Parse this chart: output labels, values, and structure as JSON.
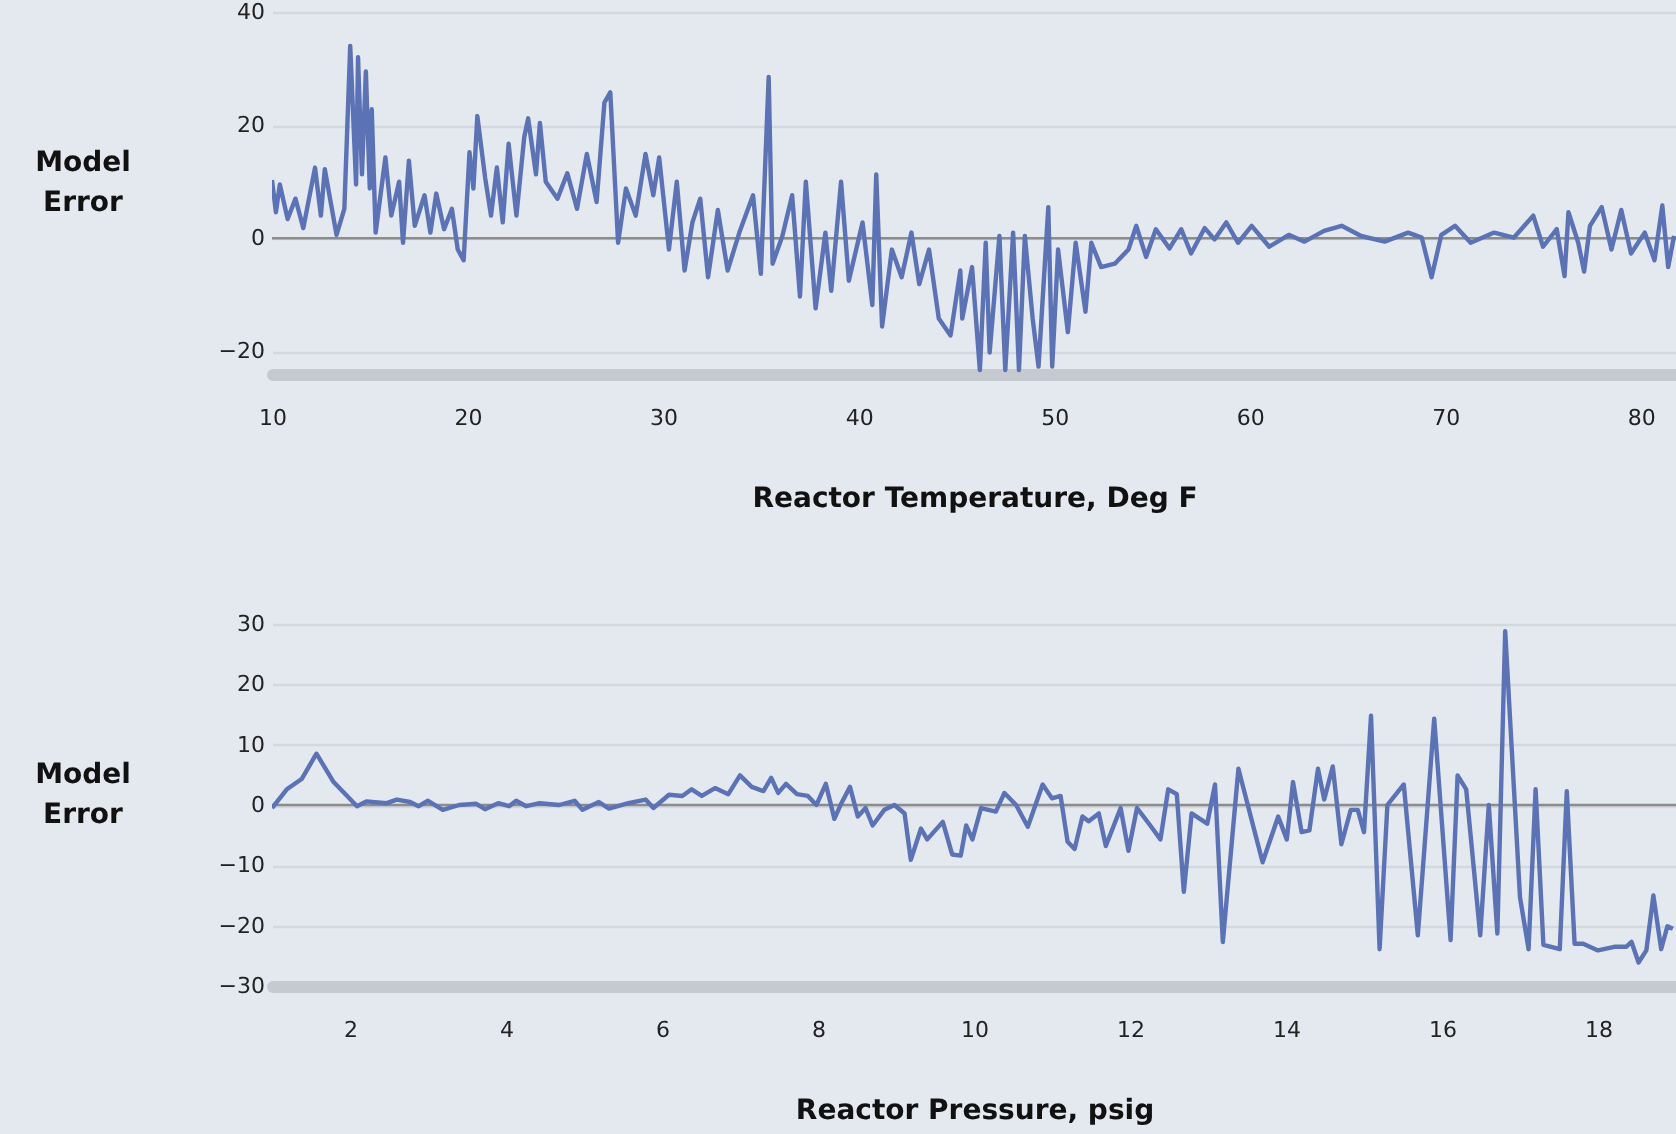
{
  "chart_data": [
    {
      "type": "line",
      "ylabel": "Model Error",
      "xlabel": "Reactor Temperature, Deg F",
      "xlim": [
        10,
        81.8
      ],
      "ylim": [
        -24,
        40
      ],
      "xticks": [
        10,
        20,
        30,
        40,
        50,
        60,
        70,
        80
      ],
      "yticks": [
        -20,
        0,
        20,
        40
      ],
      "grid": "y",
      "ref_lines": [
        {
          "axis": "y",
          "value": 0,
          "color": "#8c8c8c"
        }
      ],
      "x": [
        10.0,
        10.2,
        10.4,
        10.8,
        11.2,
        11.6,
        12.2,
        12.5,
        12.7,
        13.3,
        13.7,
        14.0,
        14.3,
        14.4,
        14.6,
        14.8,
        15.0,
        15.1,
        15.3,
        15.8,
        16.1,
        16.5,
        16.7,
        17.0,
        17.3,
        17.8,
        18.1,
        18.4,
        18.8,
        19.2,
        19.5,
        19.8,
        20.1,
        20.3,
        20.5,
        20.9,
        21.2,
        21.5,
        21.8,
        22.1,
        22.5,
        22.9,
        23.1,
        23.5,
        23.7,
        24.0,
        24.6,
        25.1,
        25.6,
        26.1,
        26.6,
        27.0,
        27.3,
        27.7,
        28.1,
        28.6,
        29.1,
        29.5,
        29.8,
        30.3,
        30.7,
        31.1,
        31.5,
        31.9,
        32.3,
        32.8,
        33.3,
        33.9,
        34.6,
        35.0,
        35.4,
        35.6,
        36.1,
        36.6,
        37.0,
        37.3,
        37.8,
        38.3,
        38.6,
        39.1,
        39.5,
        40.2,
        40.7,
        40.9,
        41.2,
        41.7,
        42.2,
        42.7,
        43.1,
        43.6,
        44.1,
        44.7,
        45.2,
        45.3,
        45.8,
        46.2,
        46.5,
        46.7,
        47.2,
        47.5,
        47.9,
        48.2,
        48.5,
        48.9,
        49.2,
        49.7,
        49.9,
        50.2,
        50.7,
        51.1,
        51.6,
        51.9,
        52.4,
        53.1,
        53.8,
        54.2,
        54.7,
        55.2,
        55.9,
        56.5,
        57.0,
        57.7,
        58.2,
        58.8,
        59.4,
        60.1,
        61.0,
        62.0,
        62.8,
        63.8,
        64.7,
        65.7,
        66.9,
        68.1,
        68.8,
        69.3,
        69.8,
        70.5,
        71.3,
        72.5,
        73.5,
        74.5,
        75.0,
        75.7,
        76.1,
        76.3,
        76.8,
        77.1,
        77.4,
        78.0,
        78.5,
        79.0,
        79.5,
        80.2,
        80.7,
        81.1,
        81.4,
        81.7
      ],
      "series": [
        {
          "color": "#5b72b4",
          "values": [
            10.3,
            4.6,
            9.5,
            3.4,
            7,
            1.8,
            12.5,
            4,
            12.2,
            0.6,
            5.2,
            34,
            9.5,
            32,
            11.3,
            29.5,
            8.8,
            22.8,
            1,
            14.3,
            4,
            10,
            -0.8,
            13.7,
            2.2,
            7.6,
            1,
            7.9,
            1.6,
            5.2,
            -2,
            -3.9,
            15.2,
            8.8,
            21.6,
            10.7,
            4,
            12.5,
            2.8,
            16.7,
            4,
            17.9,
            21.2,
            11.3,
            20.4,
            10,
            7,
            11.5,
            5.2,
            14.9,
            6.4,
            24,
            25.8,
            -0.8,
            8.8,
            4,
            14.9,
            7.6,
            14.3,
            -2,
            10,
            -5.7,
            2.8,
            7,
            -6.9,
            5,
            -5.7,
            1,
            7.6,
            -6.3,
            28.5,
            -4.5,
            0.4,
            7.6,
            -10.3,
            10,
            -12.4,
            1,
            -9.3,
            10,
            -7.5,
            2.8,
            -11.8,
            11.3,
            -15.6,
            -2,
            -6.9,
            1,
            -8.1,
            -2,
            -14.2,
            -17.2,
            -5.7,
            -14.2,
            -5.1,
            -23.3,
            -0.8,
            -20.2,
            0.4,
            -23.3,
            1,
            -23.3,
            0.4,
            -14.2,
            -22.7,
            5.5,
            -22.7,
            -2,
            -16.6,
            -0.8,
            -13,
            -0.8,
            -5.1,
            -4.5,
            -2,
            2.2,
            -3.3,
            1.6,
            -1.8,
            1.6,
            -2.7,
            1.8,
            -0.2,
            2.8,
            -0.8,
            2.2,
            -1.5,
            0.6,
            -0.6,
            1.3,
            2.2,
            0.4,
            -0.6,
            1,
            0.1,
            -6.9,
            0.6,
            2.2,
            -0.8,
            1,
            0.1,
            4,
            -1.5,
            1.6,
            -6.7,
            4.6,
            -0.8,
            -5.9,
            2.2,
            5.5,
            -2,
            5,
            -2.7,
            1,
            -3.9,
            5.8,
            -5.1,
            0.4
          ]
        }
      ]
    },
    {
      "type": "line",
      "ylabel": "Model Error",
      "xlabel": "Reactor Pressure, psig",
      "xlim": [
        1,
        19
      ],
      "ylim": [
        -30,
        30
      ],
      "xticks": [
        2,
        4,
        6,
        8,
        10,
        12,
        14,
        16,
        18
      ],
      "yticks": [
        -30,
        -20,
        -10,
        0,
        10,
        20,
        30
      ],
      "grid": "y",
      "ref_lines": [
        {
          "axis": "y",
          "value": 0,
          "color": "#8c8c8c"
        }
      ],
      "x": [
        1.0,
        1.19,
        1.38,
        1.57,
        1.79,
        2.09,
        2.21,
        2.47,
        2.6,
        2.77,
        2.88,
        3.0,
        3.19,
        3.4,
        3.62,
        3.73,
        3.9,
        4.04,
        4.13,
        4.26,
        4.43,
        4.68,
        4.88,
        4.98,
        5.19,
        5.32,
        5.57,
        5.79,
        5.89,
        6.09,
        6.26,
        6.38,
        6.51,
        6.68,
        6.85,
        7.0,
        7.15,
        7.3,
        7.4,
        7.49,
        7.59,
        7.73,
        7.87,
        7.98,
        8.1,
        8.21,
        8.3,
        8.41,
        8.51,
        8.61,
        8.7,
        8.85,
        8.98,
        9.11,
        9.19,
        9.32,
        9.4,
        9.6,
        9.72,
        9.83,
        9.9,
        9.98,
        10.09,
        10.28,
        10.39,
        10.54,
        10.69,
        10.88,
        11.0,
        11.11,
        11.2,
        11.29,
        11.39,
        11.47,
        11.6,
        11.69,
        11.88,
        11.98,
        12.09,
        12.26,
        12.39,
        12.49,
        12.6,
        12.69,
        12.79,
        12.99,
        13.09,
        13.19,
        13.39,
        13.56,
        13.7,
        13.9,
        14.01,
        14.09,
        14.2,
        14.3,
        14.41,
        14.49,
        14.6,
        14.71,
        14.83,
        14.92,
        15.0,
        15.09,
        15.2,
        15.3,
        15.51,
        15.69,
        15.9,
        16.11,
        16.2,
        16.31,
        16.49,
        16.6,
        16.71,
        16.81,
        17.0,
        17.11,
        17.2,
        17.3,
        17.51,
        17.6,
        17.7,
        17.81,
        18.0,
        18.21,
        18.36,
        18.43,
        18.52,
        18.62,
        18.71,
        18.81,
        18.89,
        18.96
      ],
      "series": [
        {
          "color": "#5b72b4",
          "values": [
            -0.5,
            2.6,
            4.3,
            8.5,
            3.8,
            -0.2,
            0.6,
            0.3,
            0.9,
            0.5,
            -0.2,
            0.7,
            -0.8,
            0,
            0.2,
            -0.7,
            0.3,
            -0.2,
            0.7,
            -0.2,
            0.3,
            0,
            0.7,
            -0.8,
            0.5,
            -0.6,
            0.3,
            0.9,
            -0.5,
            1.7,
            1.5,
            2.6,
            1.5,
            2.8,
            1.8,
            4.9,
            3.0,
            2.3,
            4.5,
            2.0,
            3.5,
            1.8,
            1.5,
            0,
            3.5,
            -2.3,
            0.3,
            3.0,
            -1.9,
            -0.5,
            -3.4,
            -0.8,
            0,
            -1.4,
            -9.1,
            -3.9,
            -5.7,
            -2.8,
            -8.2,
            -8.4,
            -3.4,
            -5.7,
            -0.5,
            -1.1,
            2.0,
            0,
            -3.6,
            3.4,
            1.1,
            1.5,
            -6.1,
            -7.3,
            -1.9,
            -2.7,
            -1.4,
            -6.8,
            -0.5,
            -7.6,
            -0.5,
            -3.4,
            -5.7,
            2.6,
            1.8,
            -14.4,
            -1.4,
            -3.1,
            3.4,
            -22.7,
            6.0,
            -2.5,
            -9.5,
            -1.9,
            -5.7,
            3.8,
            -4.5,
            -4.2,
            6.0,
            0.9,
            6.4,
            -6.5,
            -0.8,
            -0.8,
            -4.5,
            14.8,
            -23.9,
            0,
            3.4,
            -21.6,
            14.3,
            -22.4,
            4.9,
            2.6,
            -21.6,
            0,
            -21.3,
            28.8,
            -15.3,
            -23.9,
            2.6,
            -23.2,
            -23.9,
            2.3,
            -23,
            -23,
            -24.1,
            -23.5,
            -23.5,
            -22.7,
            -26.1,
            -24.1,
            -15,
            -23.9,
            -20.1,
            -20.5
          ]
        }
      ]
    }
  ]
}
